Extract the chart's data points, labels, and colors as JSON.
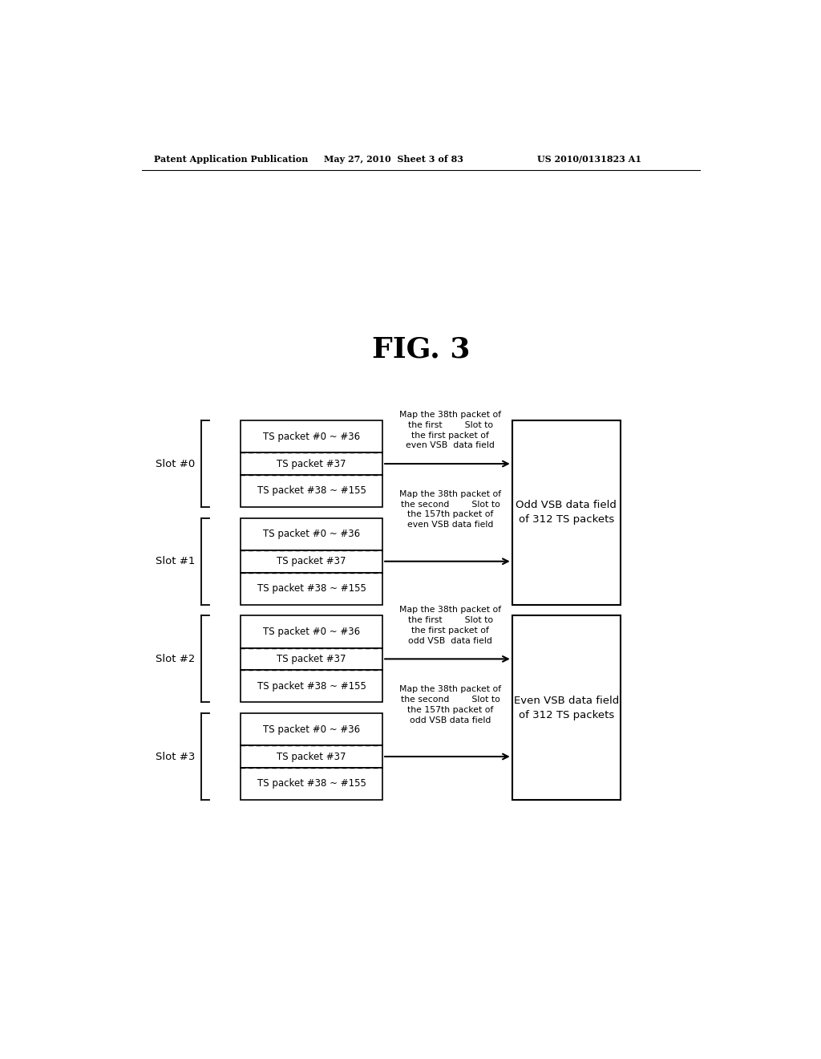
{
  "fig_title": "FIG. 3",
  "header_left": "Patent Application Publication",
  "header_mid": "May 27, 2010  Sheet 3 of 83",
  "header_right": "US 2010/0131823 A1",
  "slots": [
    "Slot #0",
    "Slot #1",
    "Slot #2",
    "Slot #3"
  ],
  "row_labels": [
    "TS packet #0 ~ #36",
    "TS packet #37",
    "TS packet #38 ~ #155"
  ],
  "ann_texts": [
    "Map the 38th packet of\nthe first        Slot to\nthe first packet of\neven VSB  data field",
    "Map the 38th packet of\nthe second        Slot to\nthe 157th packet of\neven VSB data field",
    "Map the 38th packet of\nthe first        Slot to\nthe first packet of\nodd VSB  data field",
    "Map the 38th packet of\nthe second        Slot to\nthe 157th packet of\nodd VSB data field"
  ],
  "right_box1_label": "Odd VSB data field\nof 312 TS packets",
  "right_box2_label": "Even VSB data field\nof 312 TS packets",
  "bg_color": "#ffffff",
  "box_edge_color": "#000000",
  "text_color": "#000000",
  "arrow_color": "#000000"
}
